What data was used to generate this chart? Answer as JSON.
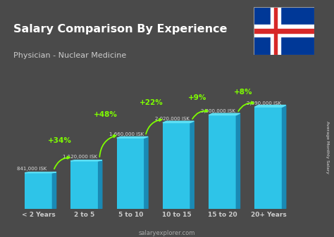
{
  "title": "Salary Comparison By Experience",
  "subtitle": "Physician - Nuclear Medicine",
  "categories": [
    "< 2 Years",
    "2 to 5",
    "5 to 10",
    "10 to 15",
    "15 to 20",
    "20+ Years"
  ],
  "values": [
    841000,
    1120000,
    1660000,
    2020000,
    2200000,
    2390000
  ],
  "labels": [
    "841,000 ISK",
    "1,120,000 ISK",
    "1,660,000 ISK",
    "2,020,000 ISK",
    "2,200,000 ISK",
    "2,390,000 ISK"
  ],
  "pct_changes": [
    "+34%",
    "+48%",
    "+22%",
    "+9%",
    "+8%"
  ],
  "bar_color_face": "#2ec4e8",
  "bar_color_right": "#1a8ab5",
  "bar_color_top": "#5de0f5",
  "background_color": "#4a4a4a",
  "title_color": "#ffffff",
  "subtitle_color": "#cccccc",
  "label_color": "#dddddd",
  "pct_color": "#7fff00",
  "arrow_color": "#7fff00",
  "xlabel_color": "#cccccc",
  "footer": "salaryexplorer.com",
  "ylabel": "Average Monthly Salary",
  "ylim": [
    0,
    2900000
  ]
}
